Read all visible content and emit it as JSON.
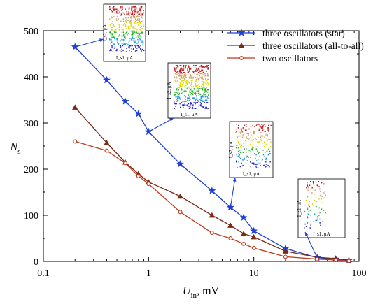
{
  "chart_data": {
    "type": "line",
    "xscale": "log",
    "xlim": [
      0.1,
      100
    ],
    "ylim": [
      0,
      500
    ],
    "x_ticks": [
      0.1,
      1,
      10,
      100
    ],
    "x_tick_labels": [
      "0.1",
      "1",
      "10",
      "100"
    ],
    "y_ticks": [
      0,
      100,
      200,
      300,
      400,
      500
    ],
    "y_tick_labels": [
      "0",
      "100",
      "200",
      "300",
      "400",
      "500"
    ],
    "xlabel": {
      "main": "U",
      "sub": "in",
      "rest": ", mV"
    },
    "ylabel": {
      "main": "N",
      "sub": "s"
    },
    "grid": false,
    "legend_position": "top-right",
    "series": [
      {
        "name": "three oscillators (star)",
        "color": "#1f3fd6",
        "marker": "star",
        "x": [
          0.2,
          0.4,
          0.6,
          0.8,
          1,
          2,
          4,
          6,
          8,
          10,
          20,
          40,
          60,
          80
        ],
        "y": [
          465,
          393,
          347,
          320,
          281,
          211,
          153,
          117,
          95,
          66,
          28,
          8,
          5,
          2
        ]
      },
      {
        "name": "three oscillators (all-to-all)",
        "color": "#7a2a14",
        "marker": "triangle",
        "x": [
          0.2,
          0.4,
          0.6,
          0.8,
          1,
          2,
          4,
          6,
          8,
          10,
          20,
          40,
          60,
          80
        ],
        "y": [
          334,
          257,
          215,
          190,
          172,
          141,
          100,
          78,
          60,
          53,
          22,
          9,
          6,
          3
        ]
      },
      {
        "name": "two oscillators",
        "color": "#c0391b",
        "marker": "circle",
        "x": [
          0.2,
          0.4,
          0.6,
          0.8,
          1,
          2,
          4,
          6,
          8,
          10,
          20,
          40,
          60,
          80
        ],
        "y": [
          260,
          240,
          213,
          185,
          168,
          107,
          62,
          50,
          38,
          29,
          10,
          5,
          3,
          1
        ]
      }
    ],
    "insets": [
      {
        "ylabel": "I_s2, μA",
        "xlabel": "I_s1, μA",
        "points_to": {
          "x": 0.2,
          "y": 465
        }
      },
      {
        "ylabel": "I_s2, μA",
        "xlabel": "I_s1, μA",
        "points_to": {
          "x": 1,
          "y": 281
        }
      },
      {
        "ylabel": "I_s2, μA",
        "xlabel": "I_s1, μA",
        "points_to": {
          "x": 6,
          "y": 117
        }
      },
      {
        "ylabel": "I_s2, μA",
        "xlabel": "I_s1, μA",
        "points_to": {
          "x": 40,
          "y": 8
        }
      }
    ]
  }
}
